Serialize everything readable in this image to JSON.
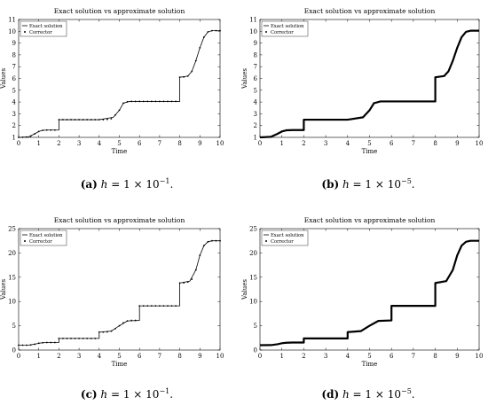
{
  "chart_data": [
    {
      "id": "a",
      "type": "line",
      "title": "Exact solution vs approximate solution",
      "xlabel": "Time",
      "ylabel": "Values",
      "xlim": [
        0,
        10
      ],
      "ylim": [
        1,
        11
      ],
      "xticks": [
        0,
        1,
        2,
        3,
        4,
        5,
        6,
        7,
        8,
        9,
        10
      ],
      "yticks": [
        1,
        2,
        3,
        4,
        5,
        6,
        7,
        8,
        9,
        10,
        11
      ],
      "legend": [
        "Exact solution",
        "Corrector"
      ],
      "legend_position": "top-left",
      "grid": false,
      "caption": {
        "label": "(a)",
        "math": "h",
        "text": " = 1 × 10",
        "exp": "−1",
        "tail": "."
      },
      "series": [
        {
          "name": "Exact solution",
          "style": "line",
          "x": [
            0,
            0.5,
            0.8,
            1.0,
            1.2,
            1.5,
            2.0,
            2.0,
            3.0,
            4.0,
            4.7,
            5.0,
            5.2,
            5.5,
            6.0,
            7.0,
            8.0,
            8.0,
            8.4,
            8.6,
            8.8,
            9.0,
            9.2,
            9.4,
            9.6,
            10.0
          ],
          "y": [
            1,
            1.05,
            1.3,
            1.5,
            1.6,
            1.62,
            1.62,
            2.5,
            2.5,
            2.5,
            2.7,
            3.3,
            3.9,
            4.05,
            4.05,
            4.05,
            4.05,
            6.1,
            6.2,
            6.6,
            7.5,
            8.6,
            9.5,
            9.95,
            10.05,
            10.05
          ]
        },
        {
          "name": "Corrector",
          "style": "markers",
          "x": [
            0,
            0.2,
            0.4,
            0.6,
            0.8,
            1.0,
            1.2,
            1.4,
            1.6,
            1.8,
            2.0,
            2.2,
            2.4,
            2.6,
            2.8,
            3.0,
            3.2,
            3.4,
            3.6,
            3.8,
            4.0,
            4.2,
            4.4,
            4.6,
            4.8,
            5.0,
            5.2,
            5.4,
            5.6,
            5.8,
            6.0,
            6.2,
            6.4,
            6.6,
            6.8,
            7.0,
            7.2,
            7.4,
            7.6,
            7.8,
            8.0,
            8.2,
            8.4,
            8.6,
            8.8,
            9.0,
            9.2,
            9.4,
            9.6,
            9.8,
            10.0
          ],
          "y": [
            1,
            1.01,
            1.03,
            1.1,
            1.3,
            1.5,
            1.6,
            1.62,
            1.62,
            1.62,
            2.5,
            2.5,
            2.5,
            2.5,
            2.5,
            2.5,
            2.5,
            2.5,
            2.5,
            2.5,
            2.5,
            2.5,
            2.52,
            2.58,
            2.9,
            3.3,
            3.9,
            4.02,
            4.05,
            4.05,
            4.05,
            4.05,
            4.05,
            4.05,
            4.05,
            4.05,
            4.05,
            4.05,
            4.05,
            4.05,
            6.1,
            6.12,
            6.2,
            6.6,
            7.5,
            8.6,
            9.5,
            9.95,
            10.05,
            10.05,
            10.05
          ]
        }
      ]
    },
    {
      "id": "b",
      "type": "line",
      "title": "Exact solution vs approximate solution",
      "xlabel": "Time",
      "ylabel": "Values",
      "xlim": [
        0,
        10
      ],
      "ylim": [
        1,
        11
      ],
      "xticks": [
        0,
        1,
        2,
        3,
        4,
        5,
        6,
        7,
        8,
        9,
        10
      ],
      "yticks": [
        1,
        2,
        3,
        4,
        5,
        6,
        7,
        8,
        9,
        10,
        11
      ],
      "legend": [
        "Exact solution",
        "Corrector"
      ],
      "legend_position": "top-left",
      "grid": false,
      "caption": {
        "label": "(b)",
        "math": "h",
        "text": " = 1 × 10",
        "exp": "−5",
        "tail": "."
      },
      "series": [
        {
          "name": "Exact solution",
          "style": "line",
          "x": [
            0,
            0.5,
            0.8,
            1.0,
            1.2,
            1.5,
            2.0,
            2.0,
            3.0,
            4.0,
            4.7,
            5.0,
            5.2,
            5.5,
            6.0,
            7.0,
            8.0,
            8.0,
            8.4,
            8.6,
            8.8,
            9.0,
            9.2,
            9.4,
            9.6,
            10.0
          ],
          "y": [
            1,
            1.05,
            1.3,
            1.5,
            1.6,
            1.62,
            1.62,
            2.5,
            2.5,
            2.5,
            2.7,
            3.3,
            3.9,
            4.05,
            4.05,
            4.05,
            4.05,
            6.1,
            6.2,
            6.6,
            7.5,
            8.6,
            9.5,
            9.95,
            10.05,
            10.05
          ]
        },
        {
          "name": "Corrector",
          "style": "thick",
          "x": [
            0,
            0.5,
            0.8,
            1.0,
            1.2,
            1.5,
            2.0,
            2.0,
            3.0,
            4.0,
            4.7,
            5.0,
            5.2,
            5.5,
            6.0,
            7.0,
            8.0,
            8.0,
            8.4,
            8.6,
            8.8,
            9.0,
            9.2,
            9.4,
            9.6,
            10.0
          ],
          "y": [
            1,
            1.05,
            1.3,
            1.5,
            1.6,
            1.62,
            1.62,
            2.5,
            2.5,
            2.5,
            2.7,
            3.3,
            3.9,
            4.05,
            4.05,
            4.05,
            4.05,
            6.1,
            6.2,
            6.6,
            7.5,
            8.6,
            9.5,
            9.95,
            10.05,
            10.05
          ]
        }
      ]
    },
    {
      "id": "c",
      "type": "line",
      "title": "Exact solution vs approximate solution",
      "xlabel": "Time",
      "ylabel": "Values",
      "xlim": [
        0,
        10
      ],
      "ylim": [
        0,
        25
      ],
      "xticks": [
        0,
        1,
        2,
        3,
        4,
        5,
        6,
        7,
        8,
        9,
        10
      ],
      "yticks": [
        0,
        5,
        10,
        15,
        20,
        25
      ],
      "legend": [
        "Exact solution",
        "Corrector"
      ],
      "legend_position": "top-left",
      "grid": false,
      "caption": {
        "label": "(c)",
        "math": "h",
        "text": " = 1 × 10",
        "exp": "−1",
        "tail": "."
      },
      "series": [
        {
          "name": "Exact solution",
          "style": "line",
          "x": [
            0,
            0.5,
            0.8,
            1.0,
            1.2,
            1.5,
            2.0,
            2.0,
            3.0,
            4.0,
            4.0,
            4.6,
            5.0,
            5.4,
            6.0,
            6.0,
            7.0,
            8.0,
            8.0,
            8.5,
            8.8,
            9.0,
            9.2,
            9.4,
            9.6,
            10.0
          ],
          "y": [
            1,
            1.02,
            1.2,
            1.4,
            1.5,
            1.55,
            1.55,
            2.4,
            2.4,
            2.4,
            3.7,
            3.9,
            5.0,
            6.0,
            6.1,
            9.1,
            9.1,
            9.1,
            13.8,
            14.2,
            16.5,
            19.5,
            21.5,
            22.3,
            22.5,
            22.5
          ]
        },
        {
          "name": "Corrector",
          "style": "markers",
          "x": [
            0,
            0.2,
            0.4,
            0.6,
            0.8,
            1.0,
            1.2,
            1.4,
            1.6,
            1.8,
            2.0,
            2.2,
            2.4,
            2.6,
            2.8,
            3.0,
            3.2,
            3.4,
            3.6,
            3.8,
            4.0,
            4.2,
            4.4,
            4.6,
            4.8,
            5.0,
            5.2,
            5.4,
            5.6,
            5.8,
            6.0,
            6.2,
            6.4,
            6.6,
            6.8,
            7.0,
            7.2,
            7.4,
            7.6,
            7.8,
            8.0,
            8.2,
            8.4,
            8.6,
            8.8,
            9.0,
            9.2,
            9.4,
            9.6,
            9.8,
            10.0
          ],
          "y": [
            1,
            1.0,
            1.01,
            1.05,
            1.2,
            1.4,
            1.5,
            1.55,
            1.55,
            1.55,
            2.4,
            2.4,
            2.4,
            2.4,
            2.4,
            2.4,
            2.4,
            2.4,
            2.4,
            2.4,
            3.7,
            3.7,
            3.75,
            3.9,
            4.4,
            5.0,
            5.6,
            6.0,
            6.1,
            6.1,
            9.1,
            9.1,
            9.1,
            9.1,
            9.1,
            9.1,
            9.1,
            9.1,
            9.1,
            9.1,
            13.8,
            13.85,
            14.0,
            14.6,
            16.5,
            19.5,
            21.5,
            22.3,
            22.5,
            22.5,
            22.5
          ]
        }
      ]
    },
    {
      "id": "d",
      "type": "line",
      "title": "Exact solution vs approximate solution",
      "xlabel": "Time",
      "ylabel": "Values",
      "xlim": [
        0,
        10
      ],
      "ylim": [
        0,
        25
      ],
      "xticks": [
        0,
        1,
        2,
        3,
        4,
        5,
        6,
        7,
        8,
        9,
        10
      ],
      "yticks": [
        0,
        5,
        10,
        15,
        20,
        25
      ],
      "legend": [
        "Exact solution",
        "Corrector"
      ],
      "legend_position": "top-left",
      "grid": false,
      "caption": {
        "label": "(d)",
        "math": "h",
        "text": " = 1 × 10",
        "exp": "−5",
        "tail": "."
      },
      "series": [
        {
          "name": "Exact solution",
          "style": "line",
          "x": [
            0,
            0.5,
            0.8,
            1.0,
            1.2,
            1.5,
            2.0,
            2.0,
            3.0,
            4.0,
            4.0,
            4.6,
            5.0,
            5.4,
            6.0,
            6.0,
            7.0,
            8.0,
            8.0,
            8.5,
            8.8,
            9.0,
            9.2,
            9.4,
            9.6,
            10.0
          ],
          "y": [
            1,
            1.02,
            1.2,
            1.4,
            1.5,
            1.55,
            1.55,
            2.4,
            2.4,
            2.4,
            3.7,
            3.9,
            5.0,
            6.0,
            6.1,
            9.1,
            9.1,
            9.1,
            13.8,
            14.2,
            16.5,
            19.5,
            21.5,
            22.3,
            22.5,
            22.5
          ]
        },
        {
          "name": "Corrector",
          "style": "thick",
          "x": [
            0,
            0.5,
            0.8,
            1.0,
            1.2,
            1.5,
            2.0,
            2.0,
            3.0,
            4.0,
            4.0,
            4.6,
            5.0,
            5.4,
            6.0,
            6.0,
            7.0,
            8.0,
            8.0,
            8.5,
            8.8,
            9.0,
            9.2,
            9.4,
            9.6,
            10.0
          ],
          "y": [
            1,
            1.02,
            1.2,
            1.4,
            1.5,
            1.55,
            1.55,
            2.4,
            2.4,
            2.4,
            3.7,
            3.9,
            5.0,
            6.0,
            6.1,
            9.1,
            9.1,
            9.1,
            13.8,
            14.2,
            16.5,
            19.5,
            21.5,
            22.3,
            22.5,
            22.5
          ]
        }
      ]
    }
  ]
}
